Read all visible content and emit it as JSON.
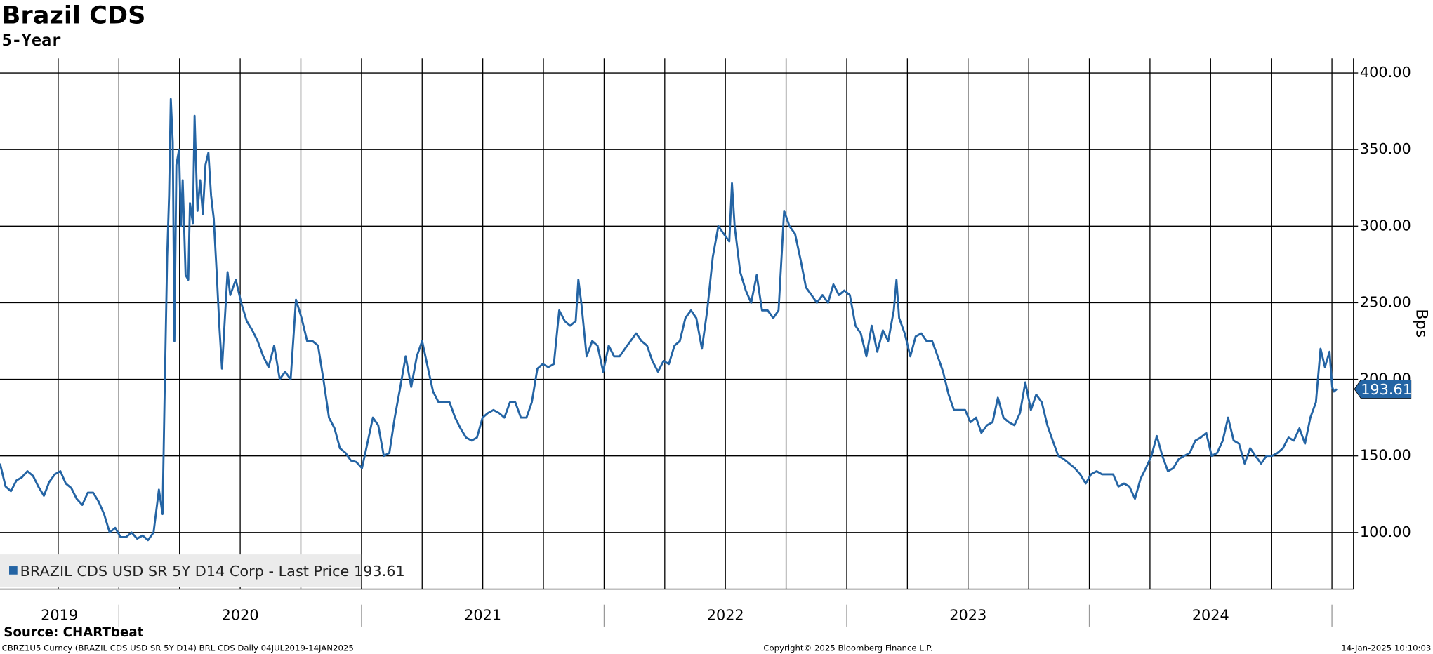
{
  "chart_data": {
    "type": "line",
    "title": "Brazil CDS",
    "subtitle": "5-Year",
    "y_label": "Bps",
    "source": "Source: CHARTbeat",
    "footer_left": "CBRZ1U5 Curncy (BRAZIL CDS USD SR 5Y D14) BRL CDS  Daily 04JUL2019-14JAN2025",
    "footer_center": "Copyright© 2025 Bloomberg Finance L.P.",
    "footer_right": "14-Jan-2025 10:10:03",
    "legend": "bottom-left",
    "grid": true,
    "xlim": [
      2019.51,
      2025.085
    ],
    "ylim": [
      63,
      409.5
    ],
    "xticks": [
      {
        "value": 2019.755,
        "label": "2019"
      },
      {
        "value": 2020.5,
        "label": "2020"
      },
      {
        "value": 2021.5,
        "label": "2021"
      },
      {
        "value": 2022.5,
        "label": "2022"
      },
      {
        "value": 2023.5,
        "label": "2023"
      },
      {
        "value": 2024.5,
        "label": "2024"
      }
    ],
    "xgrid": [
      2019.75,
      2020,
      2020.25,
      2020.5,
      2020.75,
      2021,
      2021.25,
      2021.5,
      2021.75,
      2022,
      2022.25,
      2022.5,
      2022.75,
      2023,
      2023.25,
      2023.5,
      2023.75,
      2024,
      2024.25,
      2024.5,
      2024.75,
      2025
    ],
    "yticks": [
      {
        "value": 100,
        "label": "100.00"
      },
      {
        "value": 150,
        "label": "150.00"
      },
      {
        "value": 200,
        "label": "200.00"
      },
      {
        "value": 250,
        "label": "250.00"
      },
      {
        "value": 300,
        "label": "300.00"
      },
      {
        "value": 350,
        "label": "350.00"
      },
      {
        "value": 400,
        "label": "400.00"
      }
    ],
    "series": [
      {
        "name": "BRAZIL CDS USD SR 5Y D14 Corp - Last Price 193.61",
        "color": "#2464a4",
        "x": [
          2019.51,
          2019.533,
          2019.555,
          2019.578,
          2019.6,
          2019.623,
          2019.646,
          2019.668,
          2019.691,
          2019.713,
          2019.736,
          2019.759,
          2019.781,
          2019.804,
          2019.826,
          2019.849,
          2019.872,
          2019.894,
          2019.917,
          2019.939,
          2019.962,
          2019.985,
          2020.007,
          2020.03,
          2020.052,
          2020.075,
          2020.098,
          2020.12,
          2020.143,
          2020.165,
          2020.18,
          2020.188,
          2020.199,
          2020.207,
          2020.214,
          2020.222,
          2020.229,
          2020.237,
          2020.248,
          2020.256,
          2020.263,
          2020.275,
          2020.286,
          2020.293,
          2020.305,
          2020.312,
          2020.324,
          2020.335,
          2020.346,
          2020.357,
          2020.369,
          2020.38,
          2020.391,
          2020.403,
          2020.414,
          2020.425,
          2020.437,
          2020.448,
          2020.459,
          2020.482,
          2020.504,
          2020.527,
          2020.55,
          2020.572,
          2020.595,
          2020.617,
          2020.64,
          2020.663,
          2020.685,
          2020.708,
          2020.73,
          2020.753,
          2020.776,
          2020.798,
          2020.821,
          2020.843,
          2020.866,
          2020.889,
          2020.911,
          2020.934,
          2020.956,
          2020.979,
          2021.002,
          2021.024,
          2021.047,
          2021.069,
          2021.092,
          2021.115,
          2021.137,
          2021.16,
          2021.182,
          2021.205,
          2021.228,
          2021.25,
          2021.273,
          2021.295,
          2021.318,
          2021.341,
          2021.363,
          2021.386,
          2021.408,
          2021.431,
          2021.454,
          2021.476,
          2021.499,
          2021.521,
          2021.544,
          2021.567,
          2021.589,
          2021.612,
          2021.634,
          2021.657,
          2021.68,
          2021.702,
          2021.725,
          2021.747,
          2021.77,
          2021.793,
          2021.815,
          2021.838,
          2021.86,
          2021.883,
          2021.894,
          2021.906,
          2021.928,
          2021.951,
          2021.973,
          2021.996,
          2022.019,
          2022.041,
          2022.064,
          2022.086,
          2022.109,
          2022.132,
          2022.154,
          2022.177,
          2022.199,
          2022.222,
          2022.245,
          2022.267,
          2022.29,
          2022.312,
          2022.335,
          2022.358,
          2022.38,
          2022.403,
          2022.425,
          2022.448,
          2022.471,
          2022.493,
          2022.516,
          2022.527,
          2022.538,
          2022.561,
          2022.584,
          2022.606,
          2022.629,
          2022.651,
          2022.674,
          2022.697,
          2022.719,
          2022.742,
          2022.764,
          2022.787,
          2022.81,
          2022.832,
          2022.855,
          2022.877,
          2022.9,
          2022.923,
          2022.945,
          2022.968,
          2022.99,
          2023.013,
          2023.036,
          2023.058,
          2023.081,
          2023.103,
          2023.126,
          2023.149,
          2023.171,
          2023.194,
          2023.205,
          2023.216,
          2023.239,
          2023.262,
          2023.284,
          2023.307,
          2023.329,
          2023.352,
          2023.375,
          2023.397,
          2023.42,
          2023.442,
          2023.465,
          2023.488,
          2023.51,
          2023.533,
          2023.555,
          2023.578,
          2023.601,
          2023.623,
          2023.646,
          2023.668,
          2023.691,
          2023.714,
          2023.736,
          2023.759,
          2023.781,
          2023.804,
          2023.827,
          2023.849,
          2023.872,
          2023.894,
          2023.917,
          2023.94,
          2023.962,
          2023.985,
          2024.007,
          2024.03,
          2024.052,
          2024.075,
          2024.098,
          2024.12,
          2024.143,
          2024.165,
          2024.188,
          2024.211,
          2024.233,
          2024.256,
          2024.278,
          2024.301,
          2024.324,
          2024.346,
          2024.369,
          2024.391,
          2024.414,
          2024.437,
          2024.459,
          2024.482,
          2024.504,
          2024.527,
          2024.55,
          2024.572,
          2024.595,
          2024.617,
          2024.64,
          2024.663,
          2024.685,
          2024.708,
          2024.73,
          2024.753,
          2024.776,
          2024.798,
          2024.821,
          2024.843,
          2024.866,
          2024.889,
          2024.911,
          2024.934,
          2024.953,
          2024.971,
          2024.99,
          2025.001,
          2025.008,
          2025.02
        ],
        "values": [
          145,
          130,
          127,
          134,
          136,
          140,
          137,
          130,
          124,
          133,
          138,
          140,
          132,
          129,
          122,
          118,
          126,
          126,
          120,
          112,
          100,
          103,
          97,
          97,
          100,
          96,
          98,
          95,
          100,
          128,
          112,
          185,
          280,
          320,
          383,
          355,
          225,
          340,
          350,
          300,
          330,
          268,
          265,
          315,
          302,
          372,
          310,
          330,
          308,
          340,
          348,
          320,
          305,
          270,
          235,
          207,
          240,
          270,
          255,
          265,
          250,
          238,
          232,
          225,
          215,
          208,
          222,
          200,
          205,
          200,
          252,
          240,
          225,
          225,
          222,
          200,
          175,
          168,
          155,
          152,
          147,
          146,
          142,
          158,
          175,
          170,
          150,
          152,
          175,
          195,
          215,
          195,
          215,
          225,
          208,
          192,
          185,
          185,
          185,
          175,
          168,
          162,
          160,
          162,
          175,
          178,
          180,
          178,
          175,
          185,
          185,
          175,
          175,
          185,
          207,
          210,
          208,
          210,
          245,
          238,
          235,
          238,
          265,
          250,
          215,
          225,
          222,
          205,
          222,
          215,
          215,
          220,
          225,
          230,
          225,
          222,
          212,
          205,
          212,
          210,
          222,
          225,
          240,
          245,
          240,
          220,
          245,
          280,
          300,
          295,
          290,
          328,
          300,
          270,
          258,
          250,
          268,
          245,
          245,
          240,
          245,
          310,
          300,
          295,
          278,
          260,
          255,
          250,
          255,
          250,
          262,
          255,
          258,
          255,
          235,
          230,
          215,
          235,
          218,
          232,
          225,
          245,
          265,
          240,
          230,
          215,
          228,
          230,
          225,
          225,
          215,
          205,
          190,
          180,
          180,
          180,
          172,
          175,
          165,
          170,
          172,
          188,
          175,
          172,
          170,
          178,
          198,
          180,
          190,
          185,
          170,
          160,
          150,
          148,
          145,
          142,
          138,
          132,
          138,
          140,
          138,
          138,
          138,
          130,
          132,
          130,
          122,
          135,
          142,
          150,
          163,
          150,
          140,
          142,
          148,
          150,
          152,
          160,
          162,
          165,
          150,
          152,
          160,
          175,
          160,
          158,
          145,
          155,
          150,
          145,
          150,
          150,
          152,
          155,
          162,
          160,
          168,
          158,
          175,
          185,
          220,
          208,
          218,
          195,
          192,
          193.61
        ]
      }
    ]
  }
}
